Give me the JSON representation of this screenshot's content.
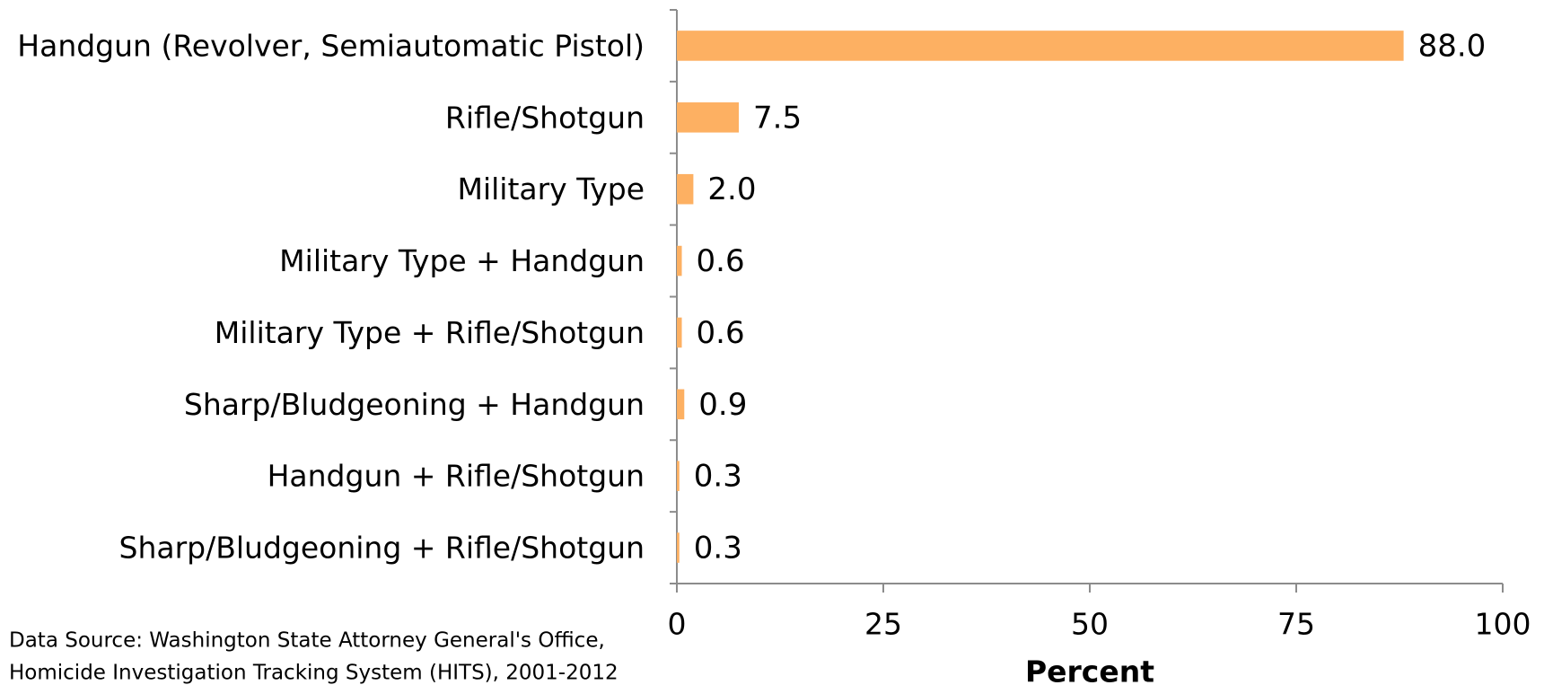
{
  "chart_data": {
    "type": "bar",
    "orientation": "horizontal",
    "categories": [
      "Handgun (Revolver, Semiautomatic Pistol)",
      "Rifle/Shotgun",
      "Military Type",
      "Military Type + Handgun",
      "Military Type + Rifle/Shotgun",
      "Sharp/Bludgeoning + Handgun",
      "Handgun + Rifle/Shotgun",
      "Sharp/Bludgeoning + Rifle/Shotgun"
    ],
    "values": [
      88.0,
      7.5,
      2.0,
      0.6,
      0.6,
      0.9,
      0.3,
      0.3
    ],
    "value_labels": [
      "88.0",
      "7.5",
      "2.0",
      "0.6",
      "0.6",
      "0.9",
      "0.3",
      "0.3"
    ],
    "color": "#fdb062",
    "xlim": [
      0,
      100
    ],
    "xticks": [
      0,
      25,
      50,
      75,
      100
    ],
    "x_label": "Percent",
    "source": [
      "Data Source: Washington State Attorney General's Office,",
      "Homicide Investigation Tracking System (HITS), 2001-2012"
    ]
  }
}
